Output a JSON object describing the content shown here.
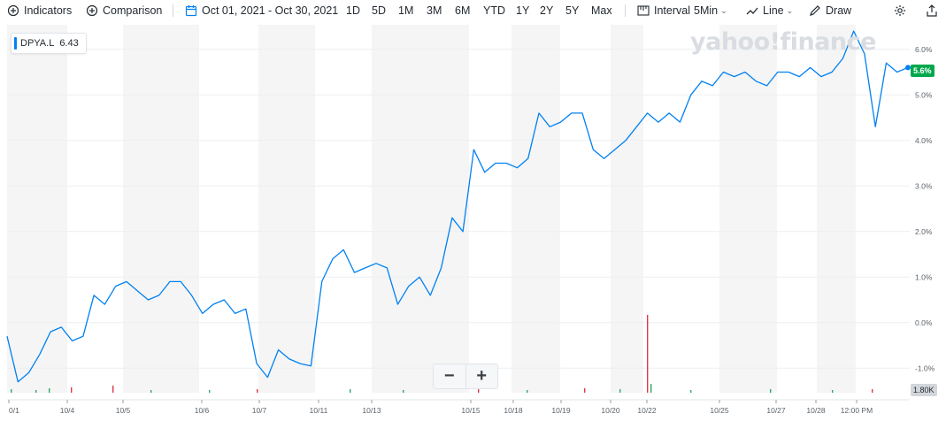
{
  "toolbar": {
    "indicators": "Indicators",
    "comparison": "Comparison",
    "date_range": "Oct 01, 2021 - Oct 30, 2021",
    "ranges": [
      "1D",
      "5D",
      "1M",
      "3M",
      "6M",
      "YTD",
      "1Y",
      "2Y",
      "5Y",
      "Max"
    ],
    "interval": "Interval",
    "interval_value": "5Min",
    "chart_type": "Line",
    "draw": "Draw"
  },
  "symbol": {
    "ticker": "DPYA.L",
    "value": "6.43"
  },
  "watermark": "yahoo!finance",
  "colors": {
    "line": "#0081f2",
    "band": "#f5f5f5",
    "last_badge": "#00a84d",
    "vol_up": "#2fa866",
    "vol_down": "#e0374c"
  },
  "last_value_label": "5.6%",
  "volume_label": "1.80K",
  "chart_data": {
    "type": "line",
    "title": "",
    "xlabel": "",
    "ylabel": "",
    "ylim": [
      -1.5,
      6.5
    ],
    "y_ticks": [
      "6.0%",
      "5.0%",
      "4.0%",
      "3.0%",
      "2.0%",
      "1.0%",
      "0.0%",
      "-1.0%"
    ],
    "y_tick_values": [
      6,
      5,
      4,
      3,
      2,
      1,
      0,
      -1
    ],
    "x_ticks": [
      "0/1",
      "10/4",
      "10/5",
      "10/6",
      "10/7",
      "10/11",
      "10/13",
      "10/15",
      "10/18",
      "10/19",
      "10/20",
      "10/22",
      "10/25",
      "10/27",
      "10/28",
      "12:00 PM"
    ],
    "grid": true,
    "series": [
      {
        "values": [
          -0.3,
          -1.3,
          -1.1,
          -0.7,
          -0.2,
          -0.1,
          -0.4,
          -0.3,
          0.6,
          0.4,
          0.8,
          0.9,
          0.7,
          0.5,
          0.6,
          0.9,
          0.9,
          0.6,
          0.2,
          0.4,
          0.5,
          0.2,
          0.3,
          -0.9,
          -1.2,
          -0.6,
          -0.8,
          -0.9,
          -0.95,
          0.9,
          1.4,
          1.6,
          1.1,
          1.2,
          1.3,
          1.2,
          0.4,
          0.8,
          1.0,
          0.6,
          1.2,
          2.3,
          2.0,
          3.8,
          3.3,
          3.5,
          3.5,
          3.4,
          3.6,
          4.6,
          4.3,
          4.4,
          4.6,
          4.6,
          3.8,
          3.6,
          3.8,
          4.0,
          4.3,
          4.6,
          4.4,
          4.6,
          4.4,
          5.0,
          5.3,
          5.2,
          5.5,
          5.4,
          5.5,
          5.3,
          5.2,
          5.5,
          5.5,
          5.4,
          5.6,
          5.4,
          5.5,
          5.8,
          6.4,
          5.9,
          4.3,
          5.7,
          5.5,
          5.6
        ]
      }
    ]
  }
}
